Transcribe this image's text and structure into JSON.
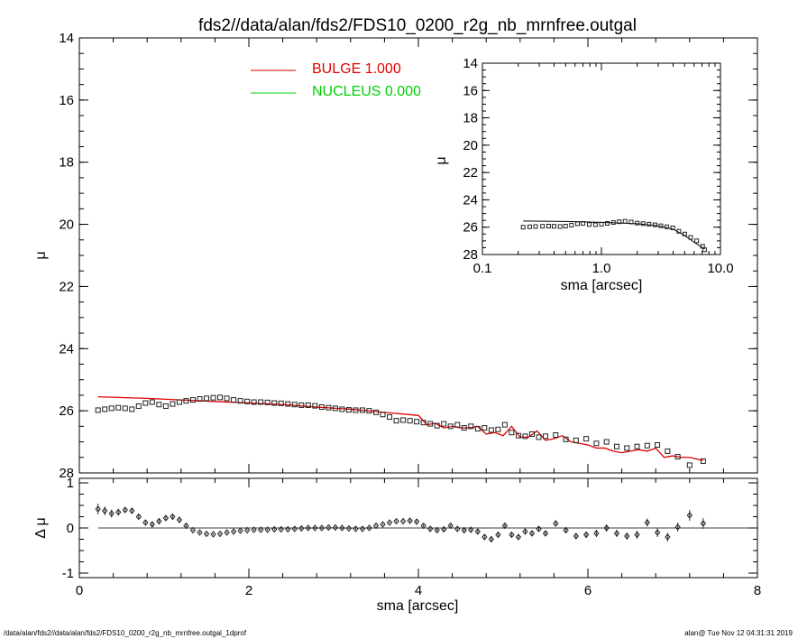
{
  "title": "fds2//data/alan/fds2/FDS10_0200_r2g_nb_mrnfree.outgal",
  "footer": {
    "left": "/data/alan/fds2//data/alan/fds2/FDS10_0200_r2g_nb_mrnfree.outgal_1dprof",
    "right": "alan@  Tue Nov 12 04:31:31 2019"
  },
  "colors": {
    "bulge": "#e00000",
    "nucleus": "#00d000",
    "data": "#000000",
    "axis": "#000000"
  },
  "chart_data": [
    {
      "type": "scatter",
      "panel": "main-profile",
      "title": "fds2//data/alan/fds2/FDS10_0200_r2g_nb_mrnfree.outgal",
      "xlabel": "",
      "ylabel": "μ",
      "xlim": [
        0,
        8
      ],
      "ylim": [
        28,
        14
      ],
      "y_inverted": true,
      "x_ticks": [
        0,
        2,
        4,
        6,
        8
      ],
      "x_tick_labels": [
        "",
        "",
        "",
        "",
        ""
      ],
      "y_ticks": [
        14,
        16,
        18,
        20,
        22,
        24,
        26,
        28
      ],
      "y_tick_labels": [
        "14",
        "16",
        "18",
        "20",
        "22",
        "24",
        "26",
        "28"
      ],
      "legend": [
        {
          "name": "BULGE  1.000",
          "color": "#e00000"
        },
        {
          "name": "NUCLEUS  0.000",
          "color": "#00d000"
        }
      ],
      "legend_position": "top-center",
      "series": [
        {
          "name": "data",
          "style": "square-markers",
          "x": [
            0.22,
            0.3,
            0.38,
            0.46,
            0.54,
            0.62,
            0.7,
            0.78,
            0.86,
            0.94,
            1.02,
            1.1,
            1.18,
            1.26,
            1.34,
            1.42,
            1.5,
            1.58,
            1.66,
            1.74,
            1.82,
            1.9,
            1.98,
            2.06,
            2.14,
            2.22,
            2.3,
            2.38,
            2.46,
            2.54,
            2.62,
            2.7,
            2.78,
            2.86,
            2.94,
            3.02,
            3.1,
            3.18,
            3.26,
            3.34,
            3.42,
            3.5,
            3.58,
            3.66,
            3.74,
            3.82,
            3.9,
            3.98,
            4.06,
            4.14,
            4.22,
            4.3,
            4.38,
            4.46,
            4.54,
            4.62,
            4.7,
            4.78,
            4.86,
            4.94,
            5.02,
            5.1,
            5.18,
            5.26,
            5.34,
            5.42,
            5.5,
            5.62,
            5.74,
            5.86,
            5.98,
            6.1,
            6.22,
            6.34,
            6.46,
            6.58,
            6.7,
            6.82,
            6.94,
            7.06,
            7.2,
            7.36
          ],
          "y": [
            25.98,
            25.95,
            25.92,
            25.9,
            25.92,
            25.95,
            25.85,
            25.75,
            25.72,
            25.8,
            25.85,
            25.78,
            25.72,
            25.68,
            25.65,
            25.62,
            25.6,
            25.58,
            25.57,
            25.6,
            25.65,
            25.68,
            25.7,
            25.72,
            25.72,
            25.73,
            25.75,
            25.76,
            25.78,
            25.8,
            25.82,
            25.82,
            25.84,
            25.88,
            25.9,
            25.92,
            25.95,
            25.97,
            25.98,
            25.98,
            26.0,
            26.05,
            26.12,
            26.2,
            26.32,
            26.3,
            26.32,
            26.35,
            26.38,
            26.42,
            26.48,
            26.42,
            26.5,
            26.45,
            26.55,
            26.5,
            26.58,
            26.55,
            26.62,
            26.6,
            26.45,
            26.7,
            26.8,
            26.82,
            26.75,
            26.85,
            26.82,
            26.78,
            26.92,
            26.95,
            26.9,
            27.05,
            27.0,
            27.15,
            27.2,
            27.15,
            27.12,
            27.1,
            27.3,
            27.48,
            27.75,
            27.62
          ]
        },
        {
          "name": "model",
          "style": "line",
          "color": "#e00000",
          "x": [
            0.22,
            0.8,
            1.2,
            1.6,
            2.0,
            2.4,
            2.8,
            3.2,
            3.6,
            4.0,
            4.1,
            4.2,
            4.3,
            4.4,
            4.5,
            4.6,
            4.7,
            4.8,
            4.9,
            5.0,
            5.1,
            5.2,
            5.3,
            5.4,
            5.5,
            5.6,
            5.7,
            5.8,
            5.9,
            6.0,
            6.1,
            6.2,
            6.3,
            6.4,
            6.5,
            6.6,
            6.7,
            6.8,
            6.9,
            7.0,
            7.1,
            7.2,
            7.36
          ],
          "y": [
            25.55,
            25.6,
            25.65,
            25.7,
            25.75,
            25.8,
            25.88,
            25.95,
            26.05,
            26.15,
            26.45,
            26.4,
            26.55,
            26.5,
            26.55,
            26.55,
            26.5,
            26.75,
            26.7,
            26.8,
            26.5,
            26.85,
            26.85,
            26.65,
            26.95,
            26.9,
            26.8,
            27.0,
            27.05,
            27.1,
            27.2,
            27.2,
            27.3,
            27.35,
            27.3,
            27.25,
            27.3,
            27.2,
            27.5,
            27.45,
            27.5,
            27.5,
            27.6
          ]
        }
      ]
    },
    {
      "type": "scatter",
      "panel": "residuals",
      "xlabel": "sma [arcsec]",
      "ylabel": "Δ μ",
      "xlim": [
        0,
        8
      ],
      "ylim": [
        -1.1,
        1.1
      ],
      "x_ticks": [
        0,
        2,
        4,
        6,
        8
      ],
      "x_tick_labels": [
        "0",
        "2",
        "4",
        "6",
        "8"
      ],
      "y_ticks": [
        -1,
        0,
        1
      ],
      "y_tick_labels": [
        "-1",
        "0",
        "1"
      ],
      "zero_line": true,
      "series": [
        {
          "name": "residual",
          "style": "diamond-markers-with-errorbars",
          "x": [
            0.22,
            0.3,
            0.38,
            0.46,
            0.54,
            0.62,
            0.7,
            0.78,
            0.86,
            0.94,
            1.02,
            1.1,
            1.18,
            1.26,
            1.34,
            1.42,
            1.5,
            1.58,
            1.66,
            1.74,
            1.82,
            1.9,
            1.98,
            2.06,
            2.14,
            2.22,
            2.3,
            2.38,
            2.46,
            2.54,
            2.62,
            2.7,
            2.78,
            2.86,
            2.94,
            3.02,
            3.1,
            3.18,
            3.26,
            3.34,
            3.42,
            3.5,
            3.58,
            3.66,
            3.74,
            3.82,
            3.9,
            3.98,
            4.06,
            4.14,
            4.22,
            4.3,
            4.38,
            4.46,
            4.54,
            4.62,
            4.7,
            4.78,
            4.86,
            4.94,
            5.02,
            5.1,
            5.18,
            5.26,
            5.34,
            5.42,
            5.5,
            5.62,
            5.74,
            5.86,
            5.98,
            6.1,
            6.22,
            6.34,
            6.46,
            6.58,
            6.7,
            6.82,
            6.94,
            7.06,
            7.2,
            7.36
          ],
          "y": [
            0.42,
            0.38,
            0.32,
            0.35,
            0.4,
            0.38,
            0.25,
            0.12,
            0.08,
            0.15,
            0.22,
            0.25,
            0.18,
            0.05,
            -0.05,
            -0.1,
            -0.13,
            -0.14,
            -0.13,
            -0.1,
            -0.08,
            -0.06,
            -0.05,
            -0.04,
            -0.04,
            -0.04,
            -0.03,
            -0.03,
            -0.03,
            -0.02,
            -0.01,
            0.0,
            0.0,
            0.0,
            0.01,
            0.01,
            0.0,
            -0.01,
            -0.02,
            -0.02,
            0.0,
            0.05,
            0.08,
            0.12,
            0.15,
            0.15,
            0.16,
            0.14,
            0.05,
            -0.02,
            -0.05,
            -0.03,
            0.05,
            -0.02,
            -0.05,
            -0.04,
            -0.08,
            -0.2,
            -0.25,
            -0.15,
            0.05,
            -0.15,
            -0.2,
            -0.08,
            -0.12,
            -0.02,
            -0.12,
            0.1,
            -0.05,
            -0.18,
            -0.15,
            -0.12,
            0.0,
            -0.12,
            -0.18,
            -0.15,
            0.12,
            -0.1,
            -0.2,
            0.02,
            0.28,
            0.1
          ],
          "err": [
            0.12,
            0.1,
            0.09,
            0.08,
            0.06,
            0.05,
            0.05,
            0.05,
            0.05,
            0.04,
            0.04,
            0.04,
            0.03,
            0.03,
            0.02,
            0.02,
            0.02,
            0.02,
            0.02,
            0.02,
            0.02,
            0.02,
            0.02,
            0.02,
            0.02,
            0.02,
            0.02,
            0.02,
            0.02,
            0.02,
            0.02,
            0.02,
            0.02,
            0.02,
            0.02,
            0.02,
            0.02,
            0.02,
            0.02,
            0.02,
            0.02,
            0.02,
            0.02,
            0.02,
            0.02,
            0.02,
            0.03,
            0.03,
            0.03,
            0.03,
            0.03,
            0.03,
            0.03,
            0.03,
            0.04,
            0.04,
            0.04,
            0.05,
            0.05,
            0.05,
            0.05,
            0.05,
            0.05,
            0.06,
            0.06,
            0.06,
            0.06,
            0.07,
            0.07,
            0.07,
            0.07,
            0.08,
            0.08,
            0.08,
            0.08,
            0.09,
            0.09,
            0.1,
            0.1,
            0.1,
            0.12,
            0.12
          ]
        }
      ]
    },
    {
      "type": "scatter",
      "panel": "inset-log-profile",
      "xlabel": "sma [arcsec]",
      "ylabel": "μ",
      "x_scale": "log",
      "xlim": [
        0.1,
        10.0
      ],
      "ylim": [
        28,
        14
      ],
      "y_inverted": true,
      "x_ticks": [
        0.1,
        1.0,
        10.0
      ],
      "x_tick_labels": [
        "0.1",
        "1.0",
        "10.0"
      ],
      "y_ticks": [
        14,
        16,
        18,
        20,
        22,
        24,
        26,
        28
      ],
      "y_tick_labels": [
        "14",
        "16",
        "18",
        "20",
        "22",
        "24",
        "26",
        "28"
      ],
      "series": [
        {
          "name": "data",
          "style": "square-markers",
          "x": [
            0.22,
            0.25,
            0.28,
            0.32,
            0.36,
            0.4,
            0.45,
            0.5,
            0.56,
            0.63,
            0.7,
            0.79,
            0.89,
            1.0,
            1.12,
            1.26,
            1.41,
            1.58,
            1.78,
            2.0,
            2.24,
            2.51,
            2.82,
            3.16,
            3.55,
            3.98,
            4.47,
            5.01,
            5.62,
            6.31,
            7.08,
            7.36
          ],
          "y": [
            26.0,
            25.97,
            25.95,
            25.93,
            25.92,
            25.93,
            25.95,
            25.92,
            25.85,
            25.75,
            25.72,
            25.8,
            25.82,
            25.78,
            25.72,
            25.66,
            25.6,
            25.57,
            25.62,
            25.7,
            25.74,
            25.78,
            25.83,
            25.9,
            25.97,
            26.05,
            26.3,
            26.5,
            26.75,
            27.0,
            27.4,
            27.65
          ]
        },
        {
          "name": "model",
          "style": "line",
          "color": "#000000",
          "x": [
            0.22,
            0.5,
            1.0,
            2.0,
            3.0,
            4.0,
            5.0,
            6.0,
            7.36
          ],
          "y": [
            25.55,
            25.58,
            25.65,
            25.75,
            25.9,
            26.15,
            26.6,
            27.1,
            27.6
          ]
        }
      ]
    }
  ]
}
